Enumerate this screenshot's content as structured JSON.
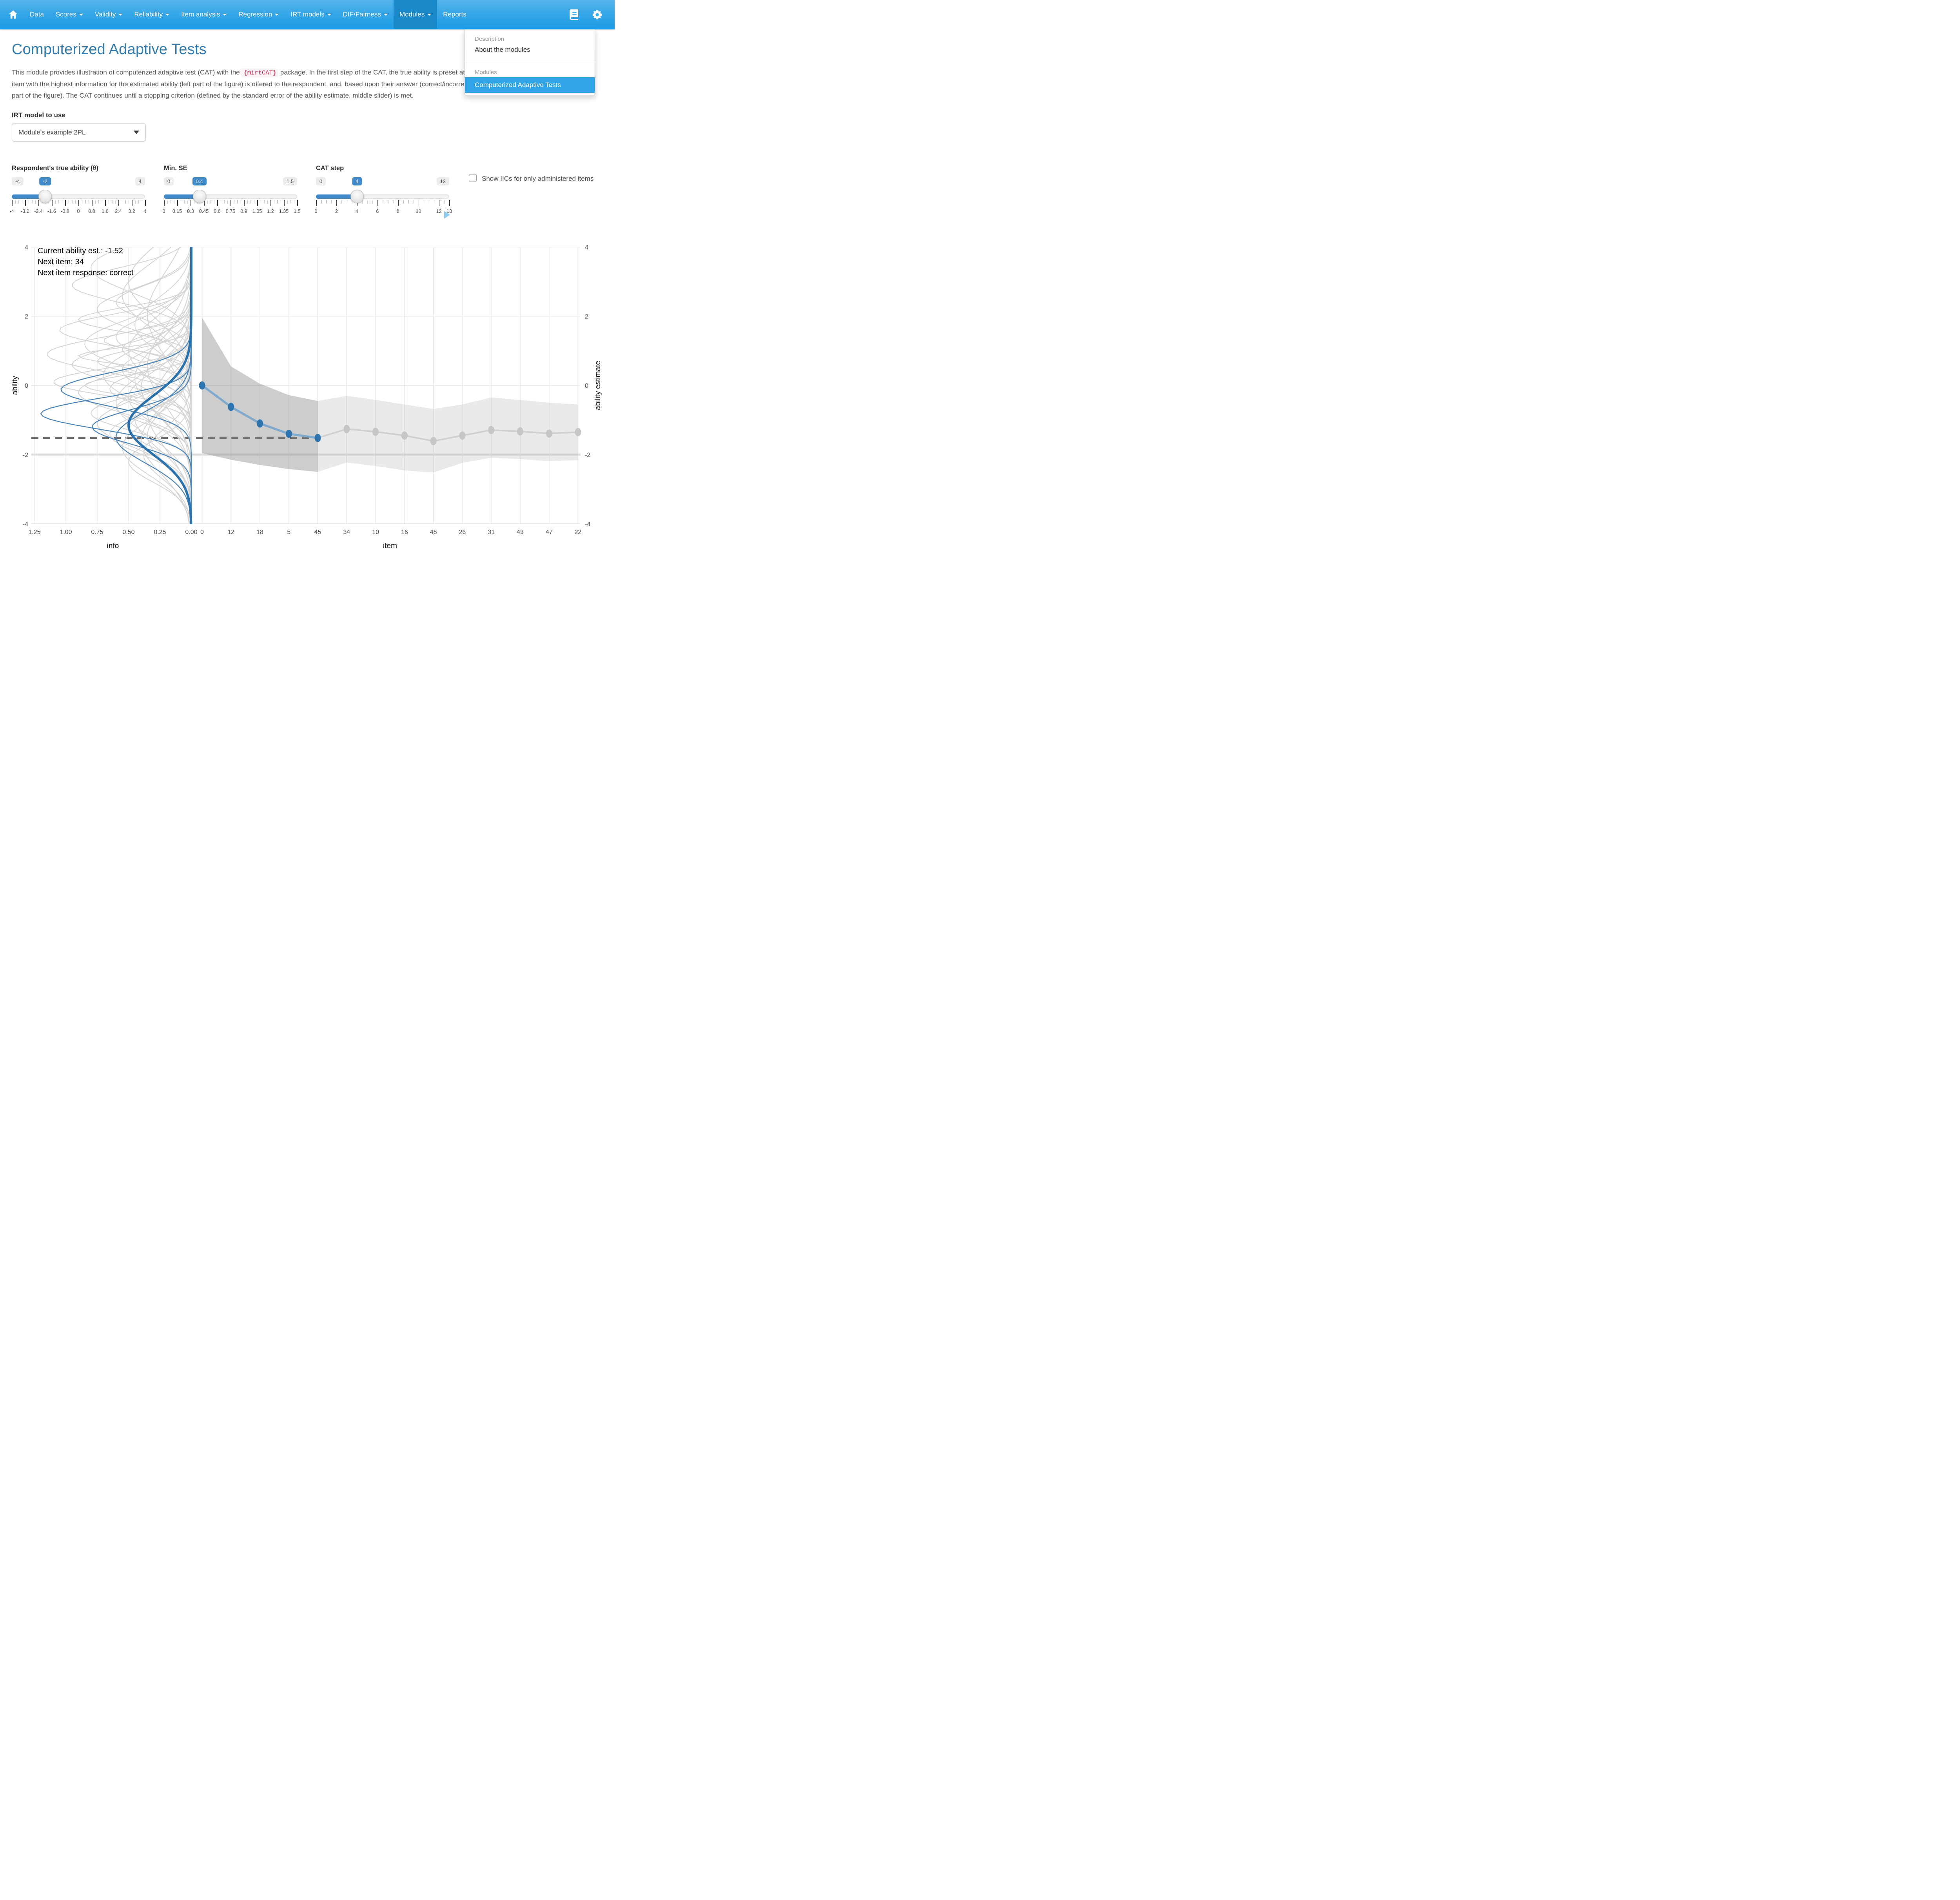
{
  "navbar": {
    "items": [
      {
        "label": "Data",
        "caret": false,
        "active": false
      },
      {
        "label": "Scores",
        "caret": true,
        "active": false
      },
      {
        "label": "Validity",
        "caret": true,
        "active": false
      },
      {
        "label": "Reliability",
        "caret": true,
        "active": false
      },
      {
        "label": "Item analysis",
        "caret": true,
        "active": false
      },
      {
        "label": "Regression",
        "caret": true,
        "active": false
      },
      {
        "label": "IRT models",
        "caret": true,
        "active": false
      },
      {
        "label": "DIF/Fairness",
        "caret": true,
        "active": false
      },
      {
        "label": "Modules",
        "caret": true,
        "active": true
      },
      {
        "label": "Reports",
        "caret": false,
        "active": false
      }
    ],
    "icons": {
      "home": "home-icon",
      "book": "book-icon",
      "gear": "gear-icon"
    }
  },
  "dropdown": {
    "header_description": "Description",
    "item_about": "About the modules",
    "header_modules": "Modules",
    "item_active": "Computerized Adaptive Tests"
  },
  "page": {
    "title": "Computerized Adaptive Tests",
    "para_before_code": "This module provides illustration of computerized adaptive test (CAT) with the ",
    "para_code": "{mirtCAT}",
    "para_after_code": " package. In the first step of the CAT, the true ability is preset at 0. In each step of the CAT (right slider), the item with the highest information for the estimated ability (left part of the figure) is offered to the respondent, and, based upon their answer (correct/incorrect), a new ability estimate is computed (right part of the figure). The CAT continues until a stopping criterion (defined by the standard error of the ability estimate, middle slider) is met."
  },
  "controls": {
    "irt_label": "IRT model to use",
    "select_value": "Module's example 2PL",
    "sliders": [
      {
        "label": "Respondent's true ability (θ)",
        "min": -4,
        "max": 4,
        "value": -2,
        "min_label": "-4",
        "max_label": "4",
        "value_label": "-2",
        "tick_labels": [
          "-4",
          "-3.2",
          "-2.4",
          "-1.6",
          "-0.8",
          "0",
          "0.8",
          "1.6",
          "2.4",
          "3.2",
          "4"
        ],
        "tick_values": [
          -4,
          -3.2,
          -2.4,
          -1.6,
          -0.8,
          0,
          0.8,
          1.6,
          2.4,
          3.2,
          4
        ],
        "minor_step": 0.2
      },
      {
        "label": "Min. SE",
        "min": 0,
        "max": 1.5,
        "value": 0.4,
        "min_label": "0",
        "max_label": "1.5",
        "value_label": "0.4",
        "tick_labels": [
          "0",
          "0.15",
          "0.3",
          "0.45",
          "0.6",
          "0.75",
          "0.9",
          "1.05",
          "1.2",
          "1.35",
          "1.5"
        ],
        "tick_values": [
          0,
          0.15,
          0.3,
          0.45,
          0.6,
          0.75,
          0.9,
          1.05,
          1.2,
          1.35,
          1.5
        ],
        "minor_step": 0.0375
      },
      {
        "label": "CAT step",
        "min": 0,
        "max": 13,
        "value": 4,
        "min_label": "0",
        "max_label": "13",
        "value_label": "4",
        "tick_labels": [
          "0",
          "2",
          "4",
          "6",
          "8",
          "10",
          "12",
          "13"
        ],
        "tick_values": [
          0,
          2,
          4,
          6,
          8,
          10,
          12,
          13
        ],
        "minor_step": 0.5
      }
    ],
    "checkbox_label": "Show IICs for only administered items",
    "checkbox_checked": false
  },
  "chart_data": {
    "type": "line",
    "annotation": [
      "Current ability est.: -1.52",
      "Next item: 34",
      "Next item response: correct"
    ],
    "current_ability_estimate": -1.52,
    "true_ability": -2,
    "ylim": [
      -4,
      4
    ],
    "y_ticks": [
      "4",
      "2",
      "0",
      "-2",
      "-4"
    ],
    "y_tick_values": [
      4,
      2,
      0,
      -2,
      -4
    ],
    "left_panel": {
      "xlabel": "info",
      "ylabel": "ability",
      "x_tick_labels": [
        "1.25",
        "1.00",
        "0.75",
        "0.50",
        "0.25",
        "0.00"
      ],
      "x_tick_values": [
        1.25,
        1.0,
        0.75,
        0.5,
        0.25,
        0.0
      ]
    },
    "right_panel": {
      "xlabel": "item",
      "ylabel": "ability estimate",
      "categories": [
        "0",
        "12",
        "18",
        "5",
        "45",
        "34",
        "10",
        "16",
        "48",
        "26",
        "31",
        "43",
        "47",
        "22"
      ],
      "estimates": [
        0,
        -0.62,
        -1.1,
        -1.4,
        -1.52,
        -1.26,
        -1.34,
        -1.45,
        -1.61,
        -1.45,
        -1.29,
        -1.33,
        -1.39,
        -1.35
      ],
      "administered_points": 5,
      "band_dark_upper": [
        1.96,
        0.55,
        0.05,
        -0.28,
        -0.45
      ],
      "band_dark_lower": [
        -1.96,
        -2.15,
        -2.3,
        -2.42,
        -2.5
      ],
      "band_light_upper": [
        -0.45,
        -0.3,
        -0.42,
        -0.55,
        -0.68,
        -0.55,
        -0.35,
        -0.42,
        -0.5,
        -0.55
      ],
      "band_light_lower": [
        -2.5,
        -2.23,
        -2.33,
        -2.46,
        -2.52,
        -2.24,
        -2.09,
        -2.13,
        -2.19,
        -2.16
      ]
    },
    "iic_curves": {
      "gray": [
        [
          2.9,
          0.5,
          0.95
        ],
        [
          2.2,
          0.6,
          0.75
        ],
        [
          1.6,
          0.45,
          1.05
        ],
        [
          1.2,
          0.7,
          0.85
        ],
        [
          0.9,
          0.5,
          1.15
        ],
        [
          0.6,
          0.55,
          0.95
        ],
        [
          0.3,
          0.8,
          0.7
        ],
        [
          0.1,
          0.4,
          1.1
        ],
        [
          -0.2,
          0.6,
          0.9
        ],
        [
          -0.5,
          0.9,
          0.6
        ],
        [
          -0.8,
          0.5,
          0.8
        ],
        [
          -1.1,
          0.7,
          0.75
        ],
        [
          -1.4,
          0.6,
          0.65
        ],
        [
          -1.8,
          0.8,
          0.55
        ],
        [
          -2.2,
          0.6,
          0.5
        ],
        [
          3.4,
          0.7,
          0.8
        ],
        [
          2.6,
          0.9,
          0.55
        ],
        [
          1.9,
          0.35,
          0.9
        ],
        [
          1.4,
          0.6,
          0.6
        ],
        [
          1.0,
          0.9,
          0.5
        ],
        [
          0.7,
          0.35,
          0.75
        ],
        [
          0.45,
          0.6,
          0.55
        ],
        [
          0.2,
          1.0,
          0.45
        ],
        [
          -0.1,
          0.5,
          0.65
        ],
        [
          -0.35,
          0.75,
          0.5
        ],
        [
          -0.65,
          0.45,
          0.6
        ],
        [
          -0.95,
          0.85,
          0.45
        ],
        [
          -1.25,
          0.55,
          0.5
        ],
        [
          -1.6,
          0.95,
          0.4
        ],
        [
          -2.0,
          0.7,
          0.38
        ],
        [
          3.0,
          1.0,
          0.5
        ],
        [
          2.4,
          0.5,
          0.6
        ],
        [
          1.75,
          0.75,
          0.45
        ],
        [
          1.05,
          0.45,
          0.55
        ],
        [
          0.55,
          1.1,
          0.35
        ],
        [
          -0.05,
          0.9,
          0.4
        ],
        [
          -0.75,
          1.05,
          0.35
        ],
        [
          -1.45,
          0.8,
          0.35
        ],
        [
          2.05,
          1.2,
          0.35
        ],
        [
          0.85,
          0.25,
          0.9
        ],
        [
          1.3,
          0.3,
          0.7
        ],
        [
          0.0,
          0.3,
          0.85
        ]
      ],
      "administered": [
        [
          -0.12,
          0.5,
          1.04
        ],
        [
          -0.82,
          0.45,
          1.2
        ],
        [
          -1.2,
          0.5,
          0.79
        ],
        [
          -1.5,
          0.75,
          0.6
        ]
      ],
      "next_item": [
        -1.15,
        0.85,
        0.5
      ]
    },
    "colors": {
      "estimate_blue": "#2e75b0",
      "path_blue": "#7fa9cd",
      "path_gray": "#cfcfcf",
      "dot_gray": "#c6c6c6",
      "iic_gray": "#d4d4d4",
      "iic_blue": "#4e86b8",
      "iic_next": "#2a72ae",
      "band_dark": "rgba(130,130,130,0.40)",
      "band_light": "rgba(173,173,173,0.25)",
      "grid": "#e8e8e8",
      "true_line": "#dcdcdc",
      "dashed": "#111111"
    }
  }
}
